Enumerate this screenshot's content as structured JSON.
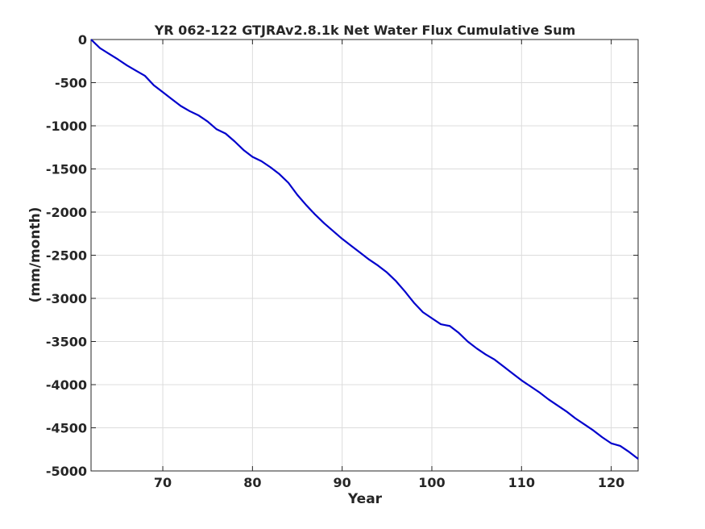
{
  "chart_data": {
    "type": "line",
    "title": "YR 062-122 GTJRAv2.8.1k Net Water Flux Cumulative Sum",
    "xlabel": "Year",
    "ylabel": "(mm/month)",
    "xlim": [
      62,
      123
    ],
    "ylim": [
      -5000,
      0
    ],
    "xticks": [
      70,
      80,
      90,
      100,
      110,
      120
    ],
    "yticks": [
      0,
      -500,
      -1000,
      -1500,
      -2000,
      -2500,
      -3000,
      -3500,
      -4000,
      -4500,
      -5000
    ],
    "grid": true,
    "line_color": "#0000cc",
    "series": [
      {
        "x": [
          62.0,
          63.0,
          64.0,
          65.0,
          66.0,
          67.0,
          68.0,
          69.0,
          70.0,
          71.0,
          72.0,
          73.0,
          74.0,
          75.0,
          76.0,
          77.0,
          78.0,
          79.0,
          80.0,
          81.0,
          82.0,
          83.0,
          84.0,
          85.0,
          86.0,
          87.0,
          88.0,
          89.0,
          90.0,
          91.0,
          92.0,
          93.0,
          94.0,
          95.0,
          96.0,
          97.0,
          98.0,
          99.0,
          100.0,
          101.0,
          101.5,
          102.0,
          103.0,
          104.0,
          105.0,
          106.0,
          107.0,
          108.0,
          109.0,
          110.0,
          111.0,
          112.0,
          113.0,
          114.0,
          115.0,
          116.0,
          117.0,
          118.0,
          119.0,
          120.0,
          121.0,
          122.0,
          123.0
        ],
        "y": [
          0,
          -100,
          -165,
          -230,
          -300,
          -360,
          -420,
          -530,
          -610,
          -690,
          -770,
          -830,
          -880,
          -950,
          -1040,
          -1090,
          -1180,
          -1280,
          -1360,
          -1410,
          -1480,
          -1560,
          -1660,
          -1800,
          -1920,
          -2030,
          -2130,
          -2220,
          -2310,
          -2390,
          -2470,
          -2550,
          -2620,
          -2700,
          -2800,
          -2920,
          -3050,
          -3160,
          -3230,
          -3300,
          -3310,
          -3320,
          -3400,
          -3500,
          -3580,
          -3650,
          -3710,
          -3790,
          -3870,
          -3950,
          -4020,
          -4090,
          -4170,
          -4240,
          -4310,
          -4390,
          -4460,
          -4530,
          -4610,
          -4680,
          -4710,
          -4780,
          -4860
        ]
      }
    ]
  }
}
